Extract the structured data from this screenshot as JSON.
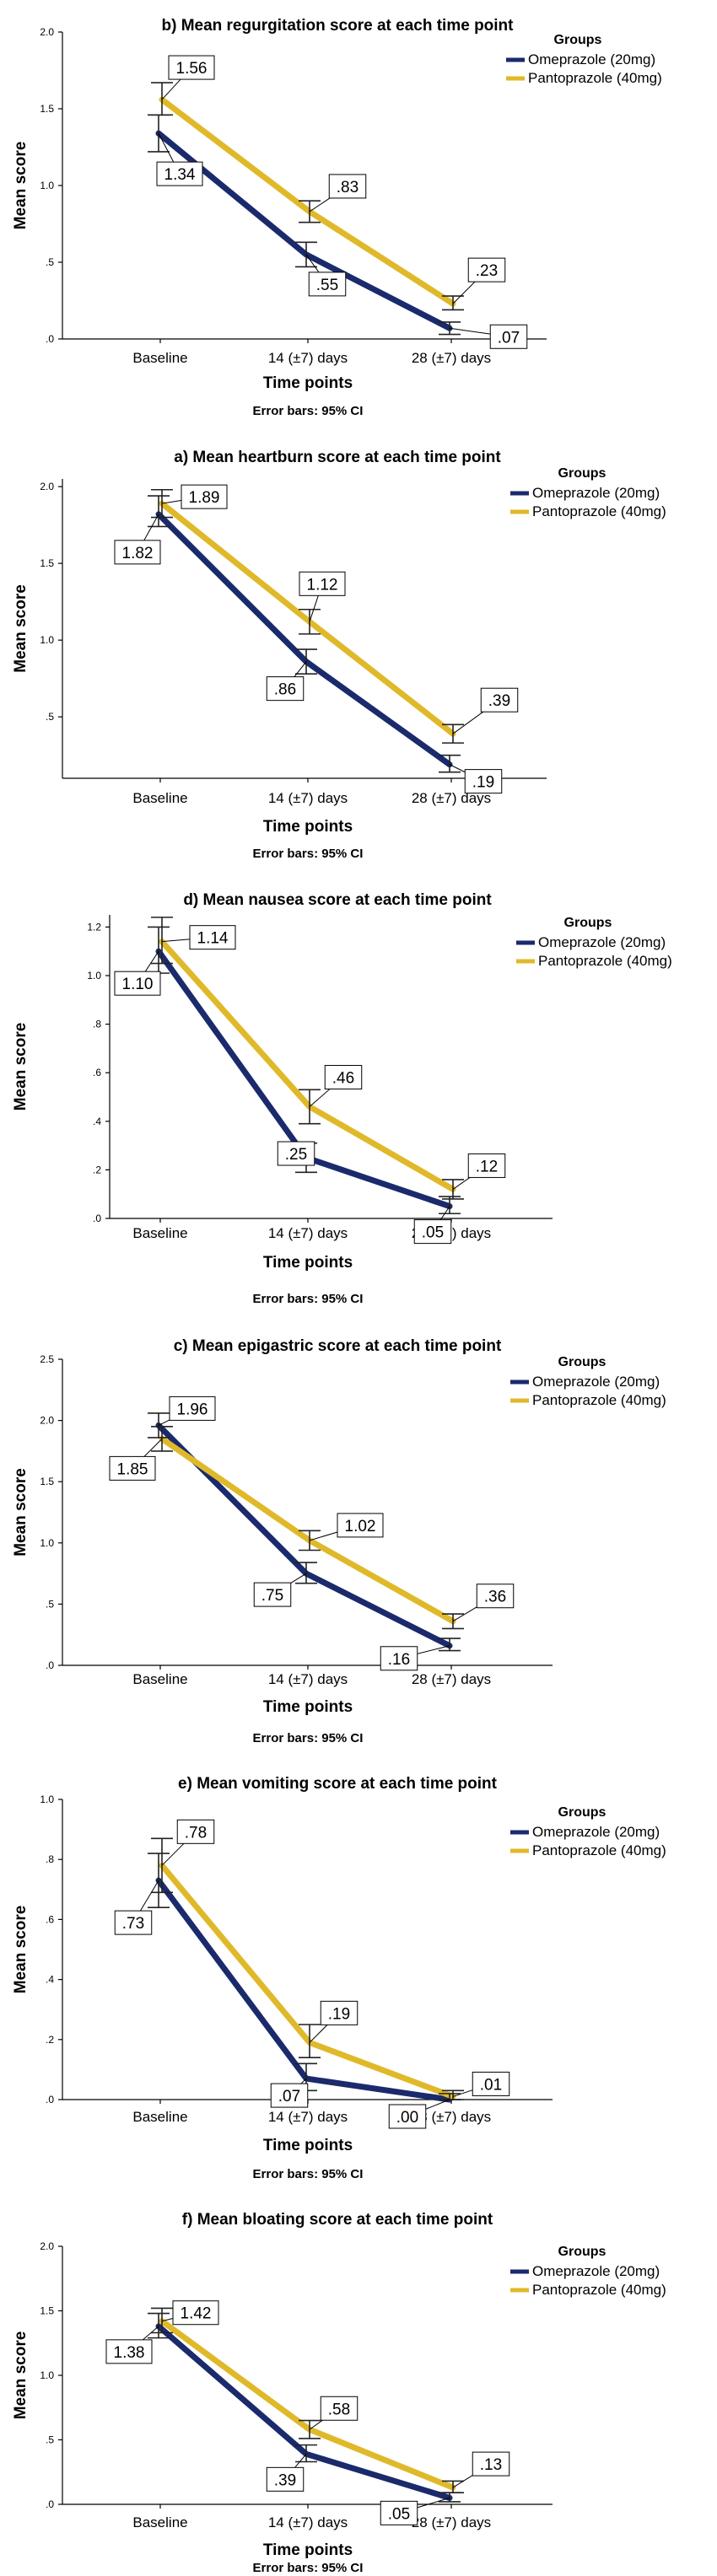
{
  "chart_data": [
    {
      "type": "line",
      "title": "b) Mean regurgitation score at each time point",
      "xlabel": "Time points",
      "ylabel": "Mean score",
      "categories": [
        "Baseline",
        "14 (±7) days",
        "28 (±7) days"
      ],
      "yticks": [
        ".0",
        ".5",
        "1.0",
        "1.5",
        "2.0"
      ],
      "ylim": [
        0,
        2.0
      ],
      "legend_title": "Groups",
      "footnote": "Error bars: 95% CI",
      "series": [
        {
          "name": "Omeprazole (20mg)",
          "color": "#1a2a6c",
          "values": [
            1.34,
            0.55,
            0.07
          ],
          "labels": [
            "1.34",
            ".55",
            ".07"
          ],
          "ci_low": [
            1.22,
            0.47,
            0.03
          ],
          "ci_high": [
            1.46,
            0.63,
            0.11
          ]
        },
        {
          "name": "Pantoprazole (40mg)",
          "color": "#e0b92a",
          "values": [
            1.56,
            0.83,
            0.23
          ],
          "labels": [
            "1.56",
            ".83",
            ".23"
          ],
          "ci_low": [
            1.46,
            0.76,
            0.19
          ],
          "ci_high": [
            1.67,
            0.9,
            0.28
          ]
        }
      ]
    },
    {
      "type": "line",
      "title": "a) Mean heartburn score at each time point",
      "xlabel": "Time points",
      "ylabel": "Mean score",
      "categories": [
        "Baseline",
        "14 (±7) days",
        "28 (±7) days"
      ],
      "yticks": [
        ".5",
        "1.0",
        "1.5",
        "2.0"
      ],
      "ylim": [
        0.1,
        2.05
      ],
      "legend_title": "Groups",
      "footnote": "Error bars: 95% CI",
      "series": [
        {
          "name": "Omeprazole (20mg)",
          "color": "#1a2a6c",
          "values": [
            1.82,
            0.86,
            0.19
          ],
          "labels": [
            "1.82",
            ".86",
            ".19"
          ],
          "ci_low": [
            1.74,
            0.78,
            0.14
          ],
          "ci_high": [
            1.94,
            0.94,
            0.25
          ]
        },
        {
          "name": "Pantoprazole (40mg)",
          "color": "#e0b92a",
          "values": [
            1.89,
            1.12,
            0.39
          ],
          "labels": [
            "1.89",
            "1.12",
            ".39"
          ],
          "ci_low": [
            1.8,
            1.04,
            0.33
          ],
          "ci_high": [
            1.98,
            1.2,
            0.45
          ]
        }
      ]
    },
    {
      "type": "line",
      "title": "d) Mean nausea score at each time point",
      "xlabel": "Time points",
      "ylabel": "Mean score",
      "categories": [
        "Baseline",
        "14 (±7) days",
        "28 (±7) days"
      ],
      "yticks": [
        ".0",
        ".2",
        ".4",
        ".6",
        ".8",
        "1.0",
        "1.2"
      ],
      "ylim": [
        0,
        1.25
      ],
      "legend_title": "Groups",
      "footnote": "Error bars: 95% CI",
      "series": [
        {
          "name": "Omeprazole (20mg)",
          "color": "#1a2a6c",
          "values": [
            1.1,
            0.25,
            0.05
          ],
          "labels": [
            "1.10",
            ".25",
            ".05"
          ],
          "ci_low": [
            1.01,
            0.19,
            0.02
          ],
          "ci_high": [
            1.2,
            0.31,
            0.09
          ]
        },
        {
          "name": "Pantoprazole (40mg)",
          "color": "#e0b92a",
          "values": [
            1.14,
            0.46,
            0.12
          ],
          "labels": [
            "1.14",
            ".46",
            ".12"
          ],
          "ci_low": [
            1.05,
            0.39,
            0.08
          ],
          "ci_high": [
            1.24,
            0.53,
            0.16
          ]
        }
      ]
    },
    {
      "type": "line",
      "title": "c) Mean epigastric score at each time point",
      "xlabel": "Time points",
      "ylabel": "Mean score",
      "categories": [
        "Baseline",
        "14 (±7) days",
        "28 (±7) days"
      ],
      "yticks": [
        ".0",
        ".5",
        "1.0",
        "1.5",
        "2.0",
        "2.5"
      ],
      "ylim": [
        0,
        2.5
      ],
      "legend_title": "Groups",
      "footnote": "Error bars: 95% CI",
      "series": [
        {
          "name": "Omeprazole (20mg)",
          "color": "#1a2a6c",
          "values": [
            1.96,
            0.75,
            0.16
          ],
          "labels": [
            "1.96",
            ".75",
            ".16"
          ],
          "ci_low": [
            1.86,
            0.67,
            0.12
          ],
          "ci_high": [
            2.06,
            0.84,
            0.22
          ]
        },
        {
          "name": "Pantoprazole (40mg)",
          "color": "#e0b92a",
          "values": [
            1.85,
            1.02,
            0.36
          ],
          "labels": [
            "1.85",
            "1.02",
            ".36"
          ],
          "ci_low": [
            1.75,
            0.94,
            0.3
          ],
          "ci_high": [
            1.95,
            1.1,
            0.42
          ]
        }
      ]
    },
    {
      "type": "line",
      "title": "e) Mean vomiting score at each time point",
      "xlabel": "Time points",
      "ylabel": "Mean score",
      "categories": [
        "Baseline",
        "14 (±7) days",
        "28 (±7) days"
      ],
      "yticks": [
        ".0",
        ".2",
        ".4",
        ".6",
        ".8",
        "1.0"
      ],
      "ylim": [
        0,
        1.0
      ],
      "legend_title": "Groups",
      "footnote": "Error bars: 95% CI",
      "series": [
        {
          "name": "Omeprazole (20mg)",
          "color": "#1a2a6c",
          "values": [
            0.73,
            0.07,
            0.0
          ],
          "labels": [
            ".73",
            ".07",
            ".00"
          ],
          "ci_low": [
            0.64,
            0.03,
            0.0
          ],
          "ci_high": [
            0.82,
            0.12,
            0.02
          ]
        },
        {
          "name": "Pantoprazole (40mg)",
          "color": "#e0b92a",
          "values": [
            0.78,
            0.19,
            0.01
          ],
          "labels": [
            ".78",
            ".19",
            ".01"
          ],
          "ci_low": [
            0.69,
            0.14,
            0.0
          ],
          "ci_high": [
            0.87,
            0.25,
            0.03
          ]
        }
      ]
    },
    {
      "type": "line",
      "title": "f) Mean bloating score at each time point",
      "xlabel": "Time points",
      "ylabel": "Mean score",
      "categories": [
        "Baseline",
        "14 (±7) days",
        "28 (±7) days"
      ],
      "yticks": [
        ".0",
        ".5",
        "1.0",
        "1.5",
        "2.0"
      ],
      "ylim": [
        0,
        2.0
      ],
      "legend_title": "Groups",
      "footnote": "Error bars: 95% CI",
      "series": [
        {
          "name": "Omeprazole (20mg)",
          "color": "#1a2a6c",
          "values": [
            1.38,
            0.39,
            0.05
          ],
          "labels": [
            "1.38",
            ".39",
            ".05"
          ],
          "ci_low": [
            1.29,
            0.33,
            0.02
          ],
          "ci_high": [
            1.48,
            0.46,
            0.09
          ]
        },
        {
          "name": "Pantoprazole (40mg)",
          "color": "#e0b92a",
          "values": [
            1.42,
            0.58,
            0.13
          ],
          "labels": [
            "1.42",
            ".58",
            ".13"
          ],
          "ci_low": [
            1.33,
            0.51,
            0.09
          ],
          "ci_high": [
            1.52,
            0.65,
            0.18
          ]
        }
      ]
    }
  ]
}
